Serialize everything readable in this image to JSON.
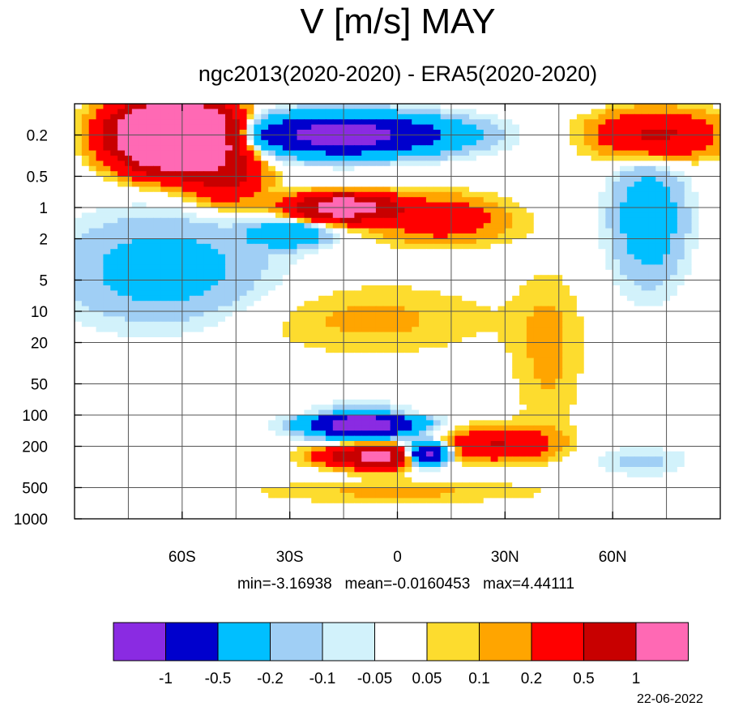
{
  "chart_data": {
    "type": "heatmap",
    "title": "V [m/s] MAY",
    "subtitle": "ngc2013(2020-2020) - ERA5(2020-2020)",
    "xlabel": "",
    "ylabel": "",
    "x_ticks": [
      -60,
      -30,
      0,
      30,
      60
    ],
    "x_tick_labels": [
      "60S",
      "30S",
      "0",
      "30N",
      "60N"
    ],
    "xlim": [
      -90,
      90
    ],
    "y_scale": "log-pressure",
    "y_ticks": [
      0.2,
      0.5,
      1,
      2,
      5,
      10,
      20,
      50,
      100,
      200,
      500,
      1000
    ],
    "y_tick_labels": [
      "0.2",
      "0.5",
      "1",
      "2",
      "5",
      "10",
      "20",
      "50",
      "100",
      "200",
      "500",
      "1000"
    ],
    "ylim": [
      1000,
      0.1
    ],
    "grid": true,
    "levels": [
      -1,
      -0.5,
      -0.2,
      -0.1,
      -0.05,
      0.05,
      0.1,
      0.2,
      0.5,
      1
    ],
    "level_labels": [
      "-1",
      "-0.5",
      "-0.2",
      "-0.1",
      "-0.05",
      "0.05",
      "0.1",
      "0.2",
      "0.5",
      "1"
    ],
    "colors": [
      "#8a2be2",
      "#0000cd",
      "#00bfff",
      "#a0cff5",
      "#d2f2fb",
      "#ffffff",
      "#fddc2e",
      "#ffa500",
      "#ff0000",
      "#c80000",
      "#ff69b4"
    ],
    "stats": {
      "min": "min=-3.16938",
      "mean": "mean=-0.0160453",
      "max": "max=4.44111"
    },
    "features": [
      {
        "lat": -62,
        "p": 0.2,
        "value": 4.0,
        "desc": "positive maximum, southern upper mesosphere"
      },
      {
        "lat": -15,
        "p": 0.2,
        "value": -1.3,
        "desc": "negative maximum, equatorial top"
      },
      {
        "lat": -15,
        "p": 1.0,
        "value": 1.5,
        "desc": "positive maximum near 1 hPa"
      },
      {
        "lat": 60,
        "p": 6.0,
        "value": -0.35,
        "desc": "negative tongue, northern high latitudes"
      },
      {
        "lat": -10,
        "p": 120,
        "value": -1.5,
        "desc": "negative maximum near tropopause"
      },
      {
        "lat": -5,
        "p": 250,
        "value": 1.2,
        "desc": "positive maximum near 250 hPa"
      },
      {
        "lat": 30,
        "p": 200,
        "value": 0.5,
        "desc": "positive region, northern subtropics"
      }
    ]
  },
  "footer": {
    "date": "22-06-2022"
  }
}
